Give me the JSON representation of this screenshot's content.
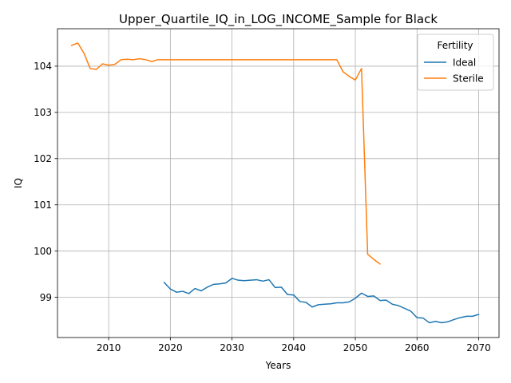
{
  "chart_data": {
    "type": "line",
    "title": "Upper_Quartile_IQ_in_LOG_INCOME_Sample for Black",
    "xlabel": "Years",
    "ylabel": "IQ",
    "xlim": [
      2001.7,
      2073.3
    ],
    "ylim": [
      98.13,
      104.81
    ],
    "xticks": [
      2010,
      2020,
      2030,
      2040,
      2050,
      2060,
      2070
    ],
    "yticks": [
      99,
      100,
      101,
      102,
      103,
      104
    ],
    "grid": true,
    "legend": {
      "title": "Fertility",
      "placement": "top-right"
    },
    "series": [
      {
        "name": "Ideal",
        "color": "#1f77b4",
        "x": [
          2019,
          2020,
          2021,
          2022,
          2023,
          2024,
          2025,
          2026,
          2027,
          2028,
          2029,
          2030,
          2031,
          2032,
          2033,
          2034,
          2035,
          2036,
          2037,
          2038,
          2039,
          2040,
          2041,
          2042,
          2043,
          2044,
          2045,
          2046,
          2047,
          2048,
          2049,
          2050,
          2051,
          2052,
          2053,
          2054,
          2055,
          2056,
          2057,
          2058,
          2059,
          2060,
          2061,
          2062,
          2063,
          2064,
          2065,
          2066,
          2067,
          2068,
          2069,
          2070
        ],
        "y": [
          99.32,
          99.18,
          99.11,
          99.13,
          99.08,
          99.19,
          99.14,
          99.22,
          99.28,
          99.29,
          99.31,
          99.41,
          99.37,
          99.36,
          99.37,
          99.38,
          99.35,
          99.38,
          99.21,
          99.22,
          99.06,
          99.05,
          98.91,
          98.89,
          98.79,
          98.84,
          98.85,
          98.86,
          98.88,
          98.88,
          98.9,
          98.98,
          99.09,
          99.02,
          99.03,
          98.93,
          98.94,
          98.85,
          98.82,
          98.76,
          98.7,
          98.56,
          98.55,
          98.45,
          98.48,
          98.45,
          98.47,
          98.52,
          98.56,
          98.59,
          98.59,
          98.63
        ]
      },
      {
        "name": "Sterile",
        "color": "#ff7f0e",
        "x": [
          2004,
          2005,
          2006,
          2007,
          2008,
          2009,
          2010,
          2011,
          2012,
          2013,
          2014,
          2015,
          2016,
          2017,
          2018,
          2019,
          2020,
          2021,
          2022,
          2023,
          2024,
          2025,
          2026,
          2027,
          2028,
          2029,
          2030,
          2031,
          2032,
          2033,
          2034,
          2035,
          2036,
          2037,
          2038,
          2039,
          2040,
          2041,
          2042,
          2043,
          2044,
          2045,
          2046,
          2047,
          2048,
          2049,
          2050,
          2051,
          2052,
          2053,
          2054
        ],
        "y": [
          104.45,
          104.5,
          104.28,
          103.95,
          103.93,
          104.05,
          104.02,
          104.04,
          104.14,
          104.15,
          104.14,
          104.16,
          104.14,
          104.1,
          104.14,
          104.14,
          104.14,
          104.14,
          104.14,
          104.14,
          104.14,
          104.14,
          104.14,
          104.14,
          104.14,
          104.14,
          104.14,
          104.14,
          104.14,
          104.14,
          104.14,
          104.14,
          104.14,
          104.14,
          104.14,
          104.14,
          104.14,
          104.14,
          104.14,
          104.14,
          104.14,
          104.14,
          104.14,
          104.14,
          103.88,
          103.78,
          103.7,
          103.95,
          99.93,
          99.82,
          99.72
        ]
      }
    ]
  }
}
